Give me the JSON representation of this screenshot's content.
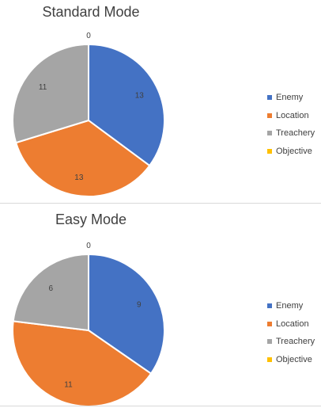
{
  "chart_data": [
    {
      "type": "pie",
      "title": "Standard Mode",
      "categories": [
        "Enemy",
        "Location",
        "Treachery",
        "Objective"
      ],
      "values": [
        13,
        13,
        11,
        0
      ],
      "colors": [
        "#4472c4",
        "#ed7d31",
        "#a5a5a5",
        "#ffc000"
      ],
      "data_labels": [
        "13",
        "13",
        "11",
        "0"
      ],
      "legend": "right"
    },
    {
      "type": "pie",
      "title": "Easy Mode",
      "categories": [
        "Enemy",
        "Location",
        "Treachery",
        "Objective"
      ],
      "values": [
        9,
        11,
        6,
        0
      ],
      "colors": [
        "#4472c4",
        "#ed7d31",
        "#a5a5a5",
        "#ffc000"
      ],
      "data_labels": [
        "9",
        "11",
        "6",
        "0"
      ],
      "legend": "right"
    }
  ]
}
